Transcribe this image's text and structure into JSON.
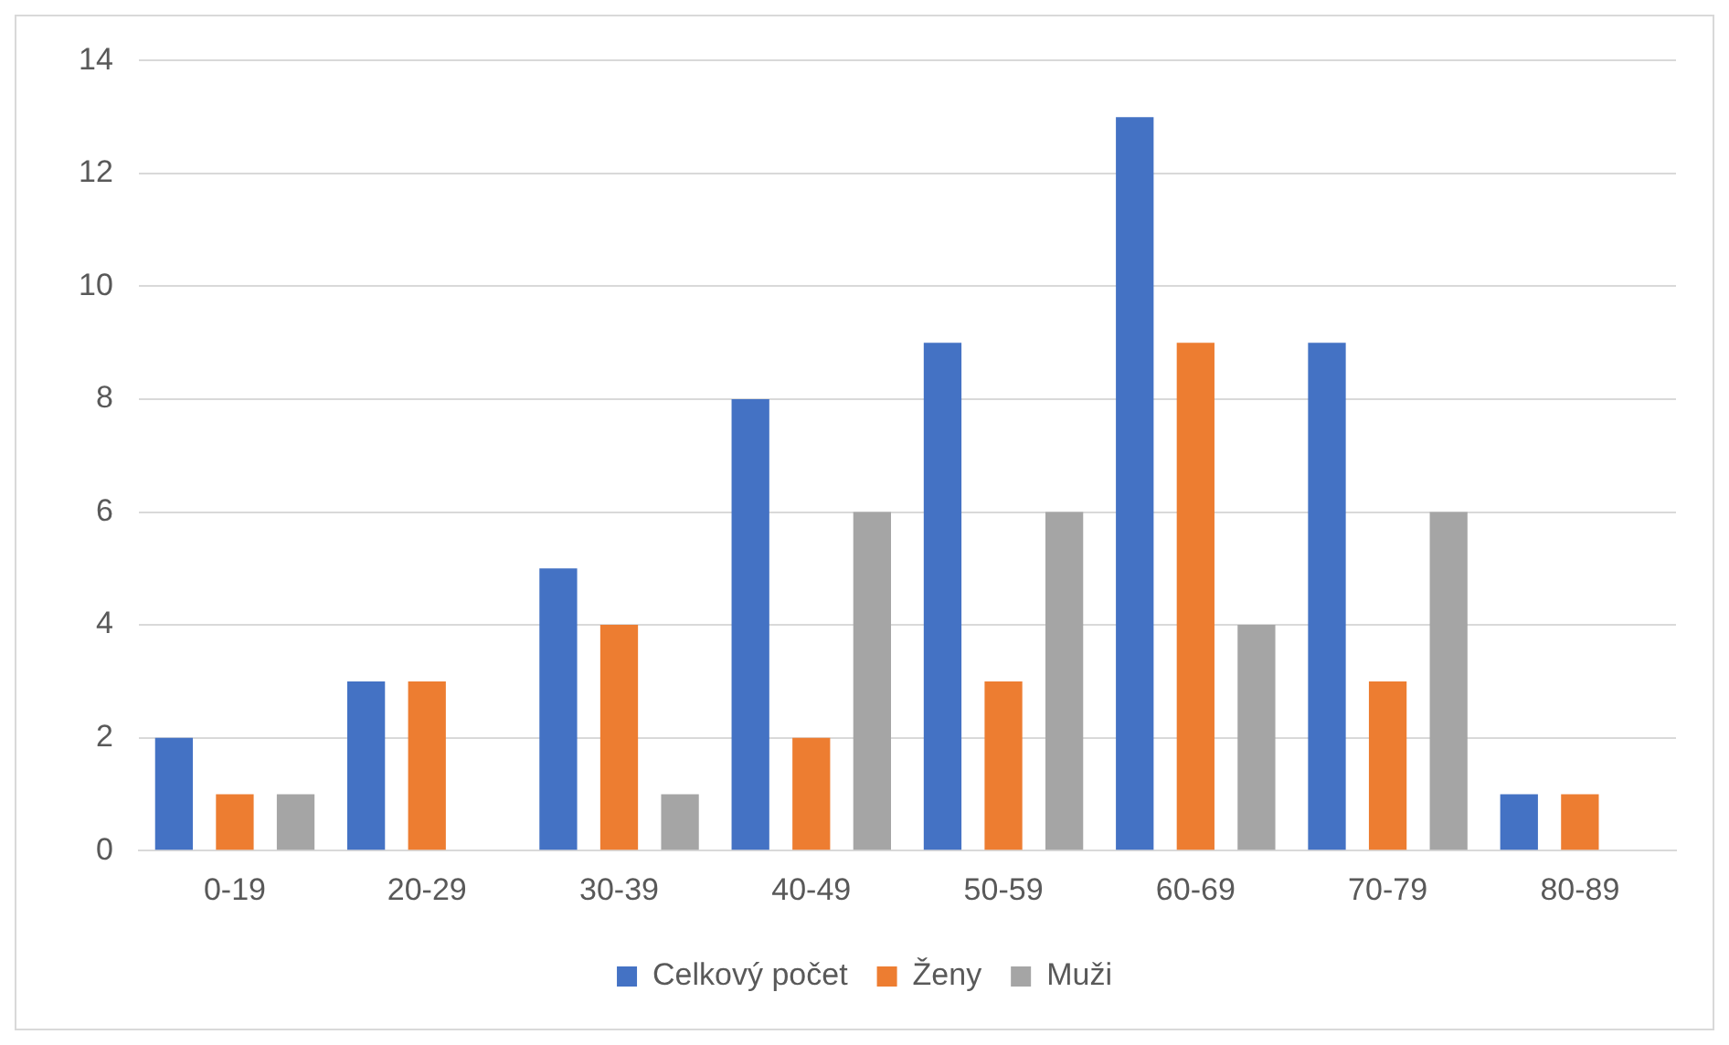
{
  "chart_data": {
    "type": "bar",
    "categories": [
      "0-19",
      "20-29",
      "30-39",
      "40-49",
      "50-59",
      "60-69",
      "70-79",
      "80-89"
    ],
    "series": [
      {
        "name": "Celkový počet",
        "color": "#4472c4",
        "values": [
          2,
          3,
          5,
          8,
          9,
          13,
          9,
          1
        ]
      },
      {
        "name": "Ženy",
        "color": "#ed7d31",
        "values": [
          1,
          3,
          4,
          2,
          3,
          9,
          3,
          1
        ]
      },
      {
        "name": "Muži",
        "color": "#a5a5a5",
        "values": [
          1,
          0,
          1,
          6,
          6,
          4,
          6,
          0
        ]
      }
    ],
    "ylim": [
      0,
      14
    ],
    "yticks": [
      0,
      2,
      4,
      6,
      8,
      10,
      12,
      14
    ],
    "grid": "y",
    "legend": "bottom"
  }
}
